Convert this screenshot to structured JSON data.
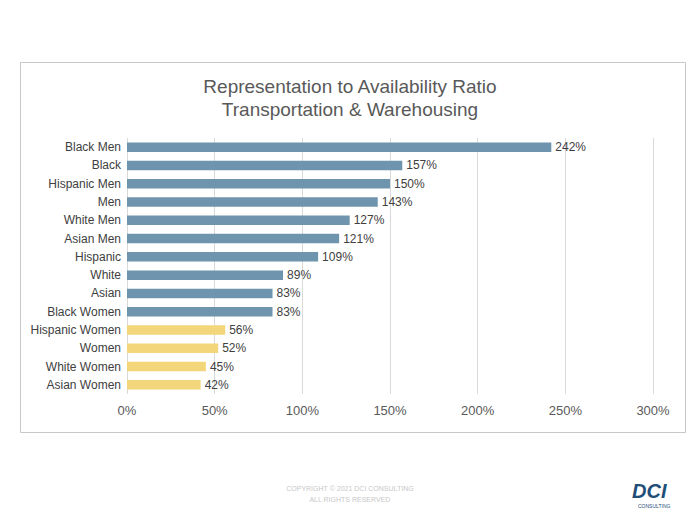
{
  "chart_data": {
    "type": "bar",
    "orientation": "horizontal",
    "title": "Representation to Availability Ratio",
    "subtitle": "Transportation & Warehousing",
    "categories": [
      "Black Men",
      "Black",
      "Hispanic Men",
      "Men",
      "White Men",
      "Asian Men",
      "Hispanic",
      "White",
      "Asian",
      "Black Women",
      "Hispanic Women",
      "Women",
      "White Women",
      "Asian Women"
    ],
    "values": [
      242,
      157,
      150,
      143,
      127,
      121,
      109,
      89,
      83,
      83,
      56,
      52,
      45,
      42
    ],
    "value_labels": [
      "242%",
      "157%",
      "150%",
      "143%",
      "127%",
      "121%",
      "109%",
      "89%",
      "83%",
      "83%",
      "56%",
      "52%",
      "45%",
      "42%"
    ],
    "colors": [
      "#6f94ae",
      "#6f94ae",
      "#6f94ae",
      "#6f94ae",
      "#6f94ae",
      "#6f94ae",
      "#6f94ae",
      "#6f94ae",
      "#6f94ae",
      "#6f94ae",
      "#f4d67a",
      "#f4d67a",
      "#f4d67a",
      "#f4d67a"
    ],
    "xlim": [
      0,
      300
    ],
    "xticks": [
      {
        "value": 0,
        "label": "0%"
      },
      {
        "value": 50,
        "label": "50%"
      },
      {
        "value": 100,
        "label": "100%"
      },
      {
        "value": 150,
        "label": "150%"
      },
      {
        "value": 200,
        "label": "200%"
      },
      {
        "value": 250,
        "label": "250%"
      },
      {
        "value": 300,
        "label": "300%"
      }
    ],
    "grid": true,
    "data_labels": true,
    "annotations": [
      "COPYRIGHT © 2021 DCI CONSULTING",
      "ALL RIGHTS RESERVED",
      "DCI",
      "CONSULTING"
    ]
  }
}
